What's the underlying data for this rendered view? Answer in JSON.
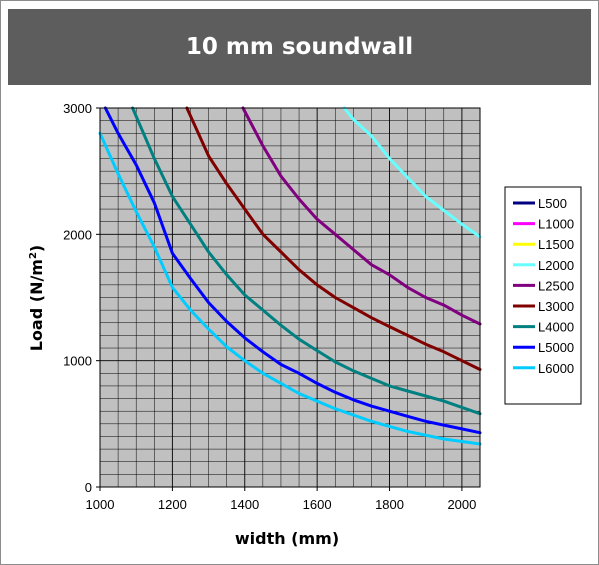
{
  "chart_data": {
    "type": "line",
    "title": "10 mm soundwall",
    "xlabel": "width (mm)",
    "ylabel": "Load (N/m",
    "ylabel_sup": "2",
    "ylabel_close": ")",
    "xlim": [
      1000,
      2050
    ],
    "ylim": [
      0,
      3000
    ],
    "xticks": [
      1000,
      1200,
      1400,
      1600,
      1800,
      2000
    ],
    "yticks": [
      0,
      1000,
      2000,
      3000
    ],
    "grid": true,
    "plot_background": "#c0c0c0",
    "legend_position": "right",
    "series": [
      {
        "name": "L500",
        "color": "#000080",
        "x": [],
        "y": []
      },
      {
        "name": "L1000",
        "color": "#ff00ff",
        "x": [],
        "y": []
      },
      {
        "name": "L1500",
        "color": "#ffff00",
        "x": [],
        "y": []
      },
      {
        "name": "L2000",
        "color": "#66ffff",
        "x": [
          1675,
          1700,
          1750,
          1800,
          1850,
          1900,
          1950,
          2000,
          2050
        ],
        "y": [
          3000,
          2910,
          2780,
          2600,
          2450,
          2300,
          2190,
          2080,
          1980
        ]
      },
      {
        "name": "L2500",
        "color": "#800080",
        "x": [
          1395,
          1450,
          1500,
          1550,
          1600,
          1650,
          1700,
          1750,
          1800,
          1850,
          1900,
          1950,
          2000,
          2050
        ],
        "y": [
          3000,
          2700,
          2460,
          2280,
          2120,
          2000,
          1880,
          1760,
          1680,
          1580,
          1500,
          1440,
          1360,
          1290
        ]
      },
      {
        "name": "L3000",
        "color": "#800000",
        "x": [
          1240,
          1300,
          1350,
          1400,
          1450,
          1500,
          1550,
          1600,
          1650,
          1700,
          1750,
          1800,
          1850,
          1900,
          1950,
          2000,
          2050
        ],
        "y": [
          3000,
          2620,
          2400,
          2200,
          2000,
          1860,
          1720,
          1600,
          1500,
          1420,
          1340,
          1270,
          1200,
          1130,
          1070,
          1000,
          930
        ]
      },
      {
        "name": "L4000",
        "color": "#008080",
        "x": [
          1090,
          1150,
          1200,
          1250,
          1300,
          1350,
          1400,
          1450,
          1500,
          1550,
          1600,
          1650,
          1700,
          1750,
          1800,
          1850,
          1900,
          1950,
          2000,
          2050
        ],
        "y": [
          3000,
          2600,
          2300,
          2080,
          1860,
          1680,
          1520,
          1400,
          1280,
          1170,
          1080,
          990,
          920,
          860,
          800,
          760,
          720,
          680,
          630,
          580
        ]
      },
      {
        "name": "L5000",
        "color": "#0000ff",
        "x": [
          1015,
          1050,
          1100,
          1150,
          1200,
          1250,
          1300,
          1350,
          1400,
          1450,
          1500,
          1550,
          1600,
          1650,
          1700,
          1750,
          1800,
          1850,
          1900,
          1950,
          2000,
          2050
        ],
        "y": [
          3000,
          2800,
          2550,
          2250,
          1850,
          1650,
          1460,
          1310,
          1180,
          1070,
          970,
          900,
          820,
          750,
          690,
          640,
          600,
          560,
          520,
          490,
          460,
          430
        ]
      },
      {
        "name": "L6000",
        "color": "#00ccff",
        "x": [
          1000,
          1050,
          1100,
          1150,
          1200,
          1250,
          1300,
          1350,
          1400,
          1450,
          1500,
          1550,
          1600,
          1650,
          1700,
          1750,
          1800,
          1850,
          1900,
          1950,
          2000,
          2050
        ],
        "y": [
          2800,
          2480,
          2180,
          1900,
          1580,
          1400,
          1250,
          1110,
          1000,
          900,
          820,
          740,
          680,
          620,
          570,
          520,
          480,
          440,
          410,
          380,
          360,
          340
        ]
      }
    ]
  }
}
